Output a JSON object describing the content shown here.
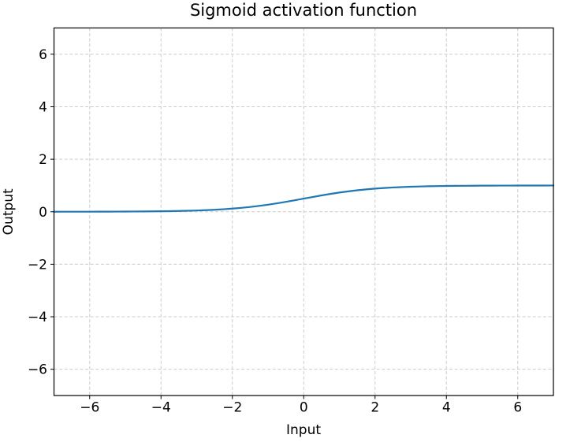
{
  "figure": {
    "background": "#ffffff"
  },
  "chart_data": {
    "type": "line",
    "title": "Sigmoid activation function",
    "xlabel": "Input",
    "ylabel": "Output",
    "xlim": [
      -7,
      7
    ],
    "ylim": [
      -7,
      7
    ],
    "xticks": [
      -6,
      -4,
      -2,
      0,
      2,
      4,
      6
    ],
    "xtick_labels": [
      "−6",
      "−4",
      "−2",
      "0",
      "2",
      "4",
      "6"
    ],
    "yticks": [
      -6,
      -4,
      -2,
      0,
      2,
      4,
      6
    ],
    "ytick_labels": [
      "−6",
      "−4",
      "−2",
      "0",
      "2",
      "4",
      "6"
    ],
    "grid": true,
    "grid_linestyle": "dashed",
    "grid_color": "#cccccc",
    "spine_color": "#000000",
    "text_color": "#000000",
    "legend_position": "none",
    "series": [
      {
        "name": "sigmoid",
        "formula": "1/(1+exp(-x))",
        "color": "#1f77b4",
        "line_width": 2.2,
        "x": [
          -7,
          -6.75,
          -6.5,
          -6.25,
          -6,
          -5.75,
          -5.5,
          -5.25,
          -5,
          -4.75,
          -4.5,
          -4.25,
          -4,
          -3.75,
          -3.5,
          -3.25,
          -3,
          -2.75,
          -2.5,
          -2.25,
          -2,
          -1.75,
          -1.5,
          -1.25,
          -1,
          -0.75,
          -0.5,
          -0.25,
          0,
          0.25,
          0.5,
          0.75,
          1,
          1.25,
          1.5,
          1.75,
          2,
          2.25,
          2.5,
          2.75,
          3,
          3.25,
          3.5,
          3.75,
          4,
          4.25,
          4.5,
          4.75,
          5,
          5.25,
          5.5,
          5.75,
          6,
          6.25,
          6.5,
          6.75,
          7
        ],
        "y": [
          0.0009,
          0.0012,
          0.0015,
          0.0019,
          0.0025,
          0.0032,
          0.0041,
          0.0052,
          0.0067,
          0.0086,
          0.0111,
          0.0141,
          0.018,
          0.023,
          0.0293,
          0.0373,
          0.0474,
          0.0601,
          0.0759,
          0.0953,
          0.1192,
          0.148,
          0.1824,
          0.2227,
          0.2689,
          0.3208,
          0.3775,
          0.4378,
          0.5,
          0.5622,
          0.6225,
          0.6792,
          0.7311,
          0.7773,
          0.8176,
          0.852,
          0.8808,
          0.9047,
          0.9241,
          0.9399,
          0.9526,
          0.9627,
          0.9707,
          0.977,
          0.982,
          0.9859,
          0.9889,
          0.9914,
          0.9933,
          0.9948,
          0.9959,
          0.9968,
          0.9975,
          0.9981,
          0.9985,
          0.9988,
          0.9991
        ]
      }
    ]
  }
}
